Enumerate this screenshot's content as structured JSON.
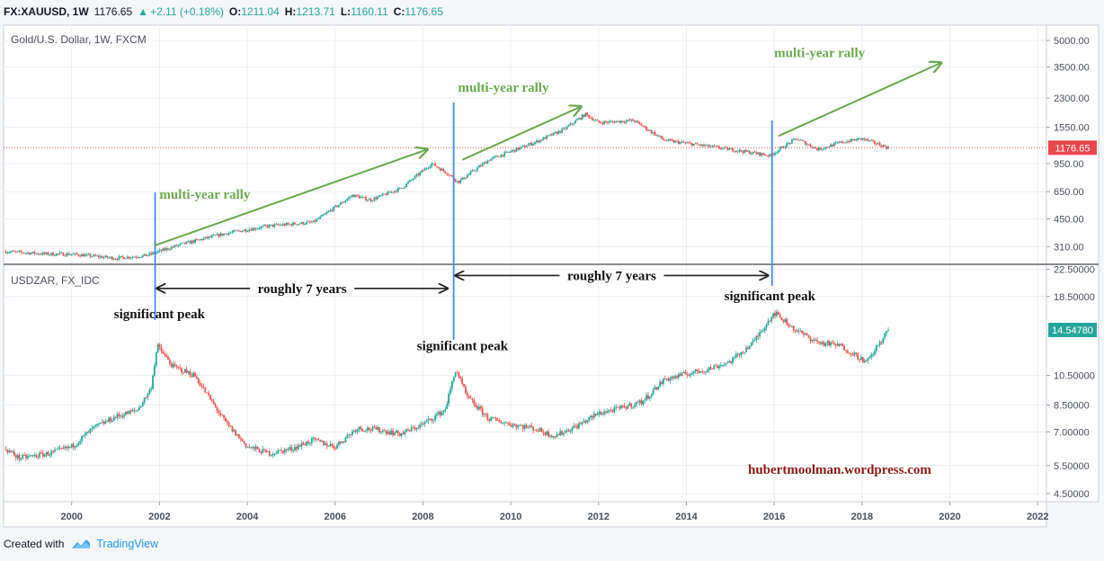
{
  "header": {
    "symbol": "FX:XAUUSD, 1W",
    "last": "1176.65",
    "change": "+2.11 (+0.18%)",
    "o_label": "O:",
    "o_value": "1211.04",
    "h_label": "H:",
    "h_value": "1213.71",
    "l_label": "L:",
    "l_value": "1160.11",
    "c_label": "C:",
    "c_value": "1176.65"
  },
  "footer": {
    "created_with": "Created with",
    "brand": "TradingView"
  },
  "colors": {
    "up": "#26a69a",
    "down": "#ef5350",
    "arrow": "#6aa84f",
    "peakline": "#4a86e8",
    "price": "#e8474c",
    "watermark": "#8b1a1a",
    "text": "#131722"
  },
  "chart_data": [
    {
      "type": "candlestick",
      "title": "Gold/U.S. Dollar, 1W, FXCM",
      "scale": "log",
      "ylim": [
        250,
        6000
      ],
      "y_ticks": [
        "5000.00",
        "3500.00",
        "2300.00",
        "1550.00",
        "950.00",
        "650.00",
        "450.00",
        "310.00"
      ],
      "y_tick_values": [
        5000,
        3500,
        2300,
        1550,
        950,
        650,
        450,
        310
      ],
      "last_price": 1176.65,
      "last_price_label": "1176.65",
      "x": [
        1998.5,
        1999.5,
        2000.0,
        2001.0,
        2001.7,
        2002.5,
        2003.5,
        2004.5,
        2005.5,
        2006.4,
        2006.8,
        2007.5,
        2008.2,
        2008.6,
        2008.8,
        2009.5,
        2010.5,
        2011.2,
        2011.7,
        2012.0,
        2012.8,
        2013.5,
        2014.0,
        2015.0,
        2015.9,
        2016.5,
        2017.0,
        2017.5,
        2018.0,
        2018.6
      ],
      "values": [
        290,
        280,
        280,
        265,
        275,
        320,
        370,
        410,
        430,
        620,
        580,
        680,
        950,
        820,
        740,
        1000,
        1250,
        1500,
        1850,
        1650,
        1700,
        1300,
        1250,
        1150,
        1060,
        1330,
        1150,
        1260,
        1330,
        1176.65
      ],
      "annotations": [
        {
          "text": "multi-year rally",
          "x": 2002.0,
          "y": 590
        },
        {
          "text": "multi-year rally",
          "x": 2008.8,
          "y": 2500
        },
        {
          "text": "multi-year rally",
          "x": 2016.0,
          "y": 4000
        }
      ],
      "arrows": [
        {
          "from": [
            2001.9,
            315
          ],
          "to": [
            2008.1,
            1150
          ]
        },
        {
          "from": [
            2008.9,
            1000
          ],
          "to": [
            2011.6,
            2050
          ]
        },
        {
          "from": [
            2016.1,
            1380
          ],
          "to": [
            2019.8,
            3700
          ]
        }
      ]
    },
    {
      "type": "candlestick",
      "title": "USDZAR, FX_IDC",
      "scale": "log",
      "ylim": [
        4.3,
        23
      ],
      "y_ticks": [
        "22.50000",
        "18.50000",
        "10.50000",
        "8.50000",
        "7.00000",
        "5.50000",
        "4.50000"
      ],
      "y_tick_values": [
        22.5,
        18.5,
        10.5,
        8.5,
        7.0,
        5.5,
        4.5
      ],
      "last_price": 14.5478,
      "last_price_label": "14.54780",
      "x": [
        1998.5,
        1998.8,
        1999.5,
        2000.0,
        2000.5,
        2001.0,
        2001.5,
        2001.8,
        2001.95,
        2002.3,
        2002.8,
        2003.5,
        2004.0,
        2004.5,
        2005.0,
        2005.5,
        2006.0,
        2006.5,
        2007.0,
        2007.5,
        2008.0,
        2008.5,
        2008.75,
        2009.0,
        2009.5,
        2010.0,
        2010.5,
        2011.0,
        2011.5,
        2012.0,
        2012.5,
        2013.0,
        2013.5,
        2014.0,
        2014.5,
        2015.0,
        2015.5,
        2016.0,
        2016.5,
        2017.0,
        2017.5,
        2018.0,
        2018.1,
        2018.6
      ],
      "values": [
        6.2,
        5.8,
        6.0,
        6.3,
        7.2,
        7.8,
        8.2,
        9.5,
        13.0,
        11.2,
        10.5,
        7.5,
        6.3,
        6.0,
        6.2,
        6.6,
        6.3,
        7.2,
        7.1,
        6.9,
        7.4,
        8.2,
        11.0,
        9.0,
        7.7,
        7.4,
        7.2,
        6.8,
        7.3,
        8.0,
        8.3,
        8.7,
        10.2,
        10.6,
        11.0,
        11.6,
        13.2,
        16.5,
        14.5,
        13.3,
        13.0,
        11.8,
        11.5,
        14.5478
      ],
      "annotations": [
        {
          "text": "significant peak",
          "x": 2002.0,
          "y": 15.8
        },
        {
          "text": "significant peak",
          "x": 2008.9,
          "y": 12.6
        },
        {
          "text": "significant peak",
          "x": 2015.9,
          "y": 18.0
        }
      ],
      "spans": [
        {
          "text": "roughly 7 years",
          "from": 2001.9,
          "to": 2008.6,
          "y": 19.6
        },
        {
          "text": "roughly 7 years",
          "from": 2008.7,
          "to": 2015.9,
          "y": 21.5
        }
      ]
    }
  ],
  "peak_markers": [
    2001.9,
    2008.7,
    2015.95
  ],
  "x_axis": {
    "ticks": [
      "2000",
      "2002",
      "2004",
      "2006",
      "2008",
      "2010",
      "2012",
      "2014",
      "2016",
      "2018",
      "2020",
      "2022"
    ],
    "tick_values": [
      2000,
      2002,
      2004,
      2006,
      2008,
      2010,
      2012,
      2014,
      2016,
      2018,
      2020,
      2022
    ],
    "range": [
      1998.45,
      2022.2
    ]
  },
  "watermark": "hubertmoolman.wordpress.com"
}
